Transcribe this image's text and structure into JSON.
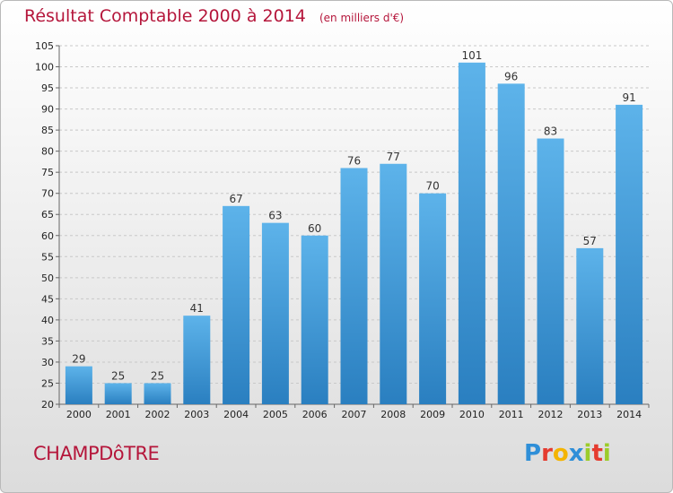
{
  "header": {
    "title": "Résultat Comptable 2000 à 2014",
    "subtitle": "(en milliers d'€)"
  },
  "footer": {
    "commune": "CHAMPDôTRE",
    "logo_letters": [
      "P",
      "r",
      "o",
      "x",
      "i",
      "t",
      "i"
    ],
    "logo_colors": [
      "#2f8fd8",
      "#e53b2f",
      "#f4b400",
      "#2f8fd8",
      "#9ccc2a",
      "#e53b2f",
      "#9ccc2a"
    ]
  },
  "colors": {
    "title": "#b5163b",
    "bar_top": "#5db3ea",
    "bar_bottom": "#2a7fc0",
    "grid": "#c8c8c8"
  },
  "chart_data": {
    "type": "bar",
    "title": "Résultat Comptable 2000 à 2014",
    "subtitle": "(en milliers d'€)",
    "categories": [
      "2000",
      "2001",
      "2002",
      "2003",
      "2004",
      "2005",
      "2006",
      "2007",
      "2008",
      "2009",
      "2010",
      "2011",
      "2012",
      "2013",
      "2014"
    ],
    "values": [
      29,
      25,
      25,
      41,
      67,
      63,
      60,
      76,
      77,
      70,
      101,
      96,
      83,
      57,
      91
    ],
    "ylim": [
      20,
      105
    ],
    "yticks": [
      20,
      25,
      30,
      35,
      40,
      45,
      50,
      55,
      60,
      65,
      70,
      75,
      80,
      85,
      90,
      95,
      100,
      105
    ],
    "grid": true,
    "legend": "none"
  }
}
